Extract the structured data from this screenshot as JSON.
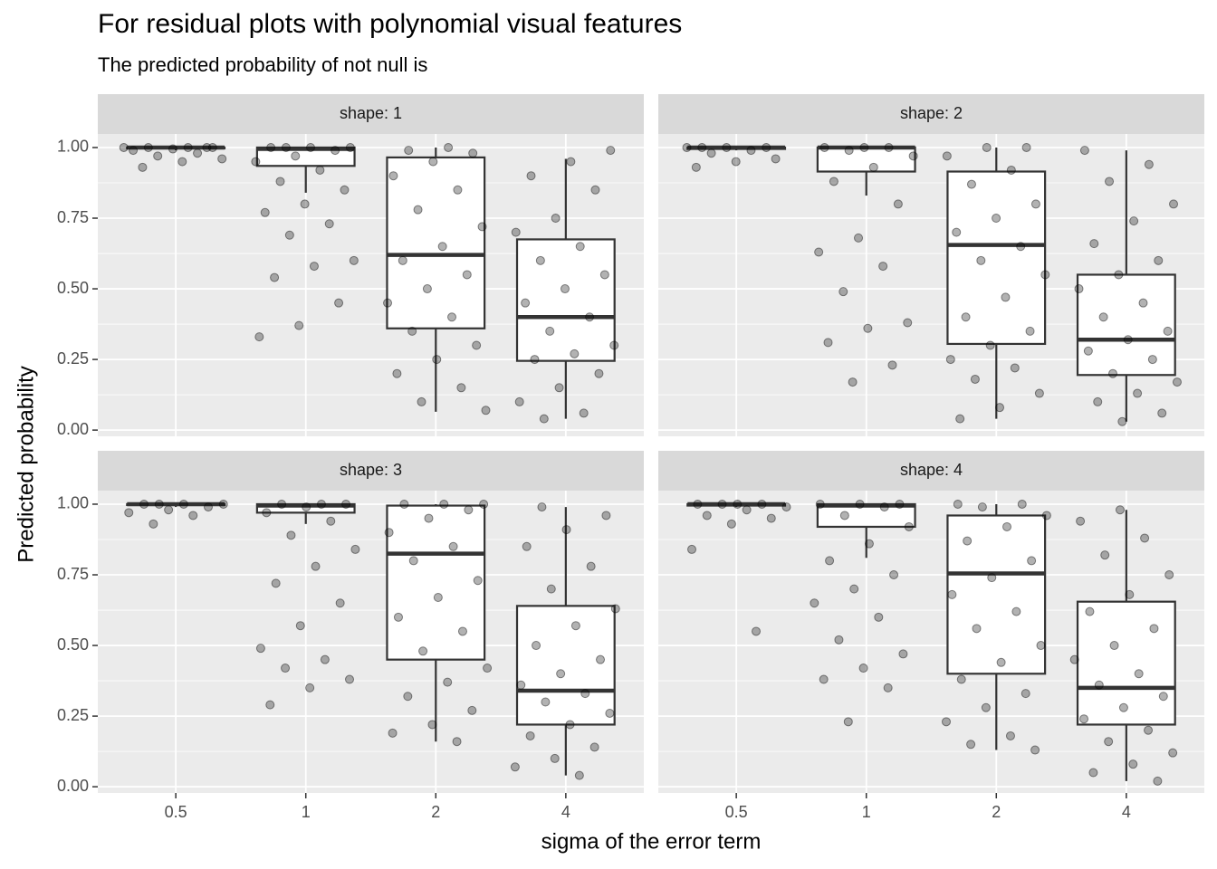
{
  "title": "For residual plots with polynomial visual features",
  "subtitle": "The predicted probability of not null is",
  "x_label": "sigma of the error term",
  "y_label": "Predicted probability",
  "chart_data": {
    "type": "box",
    "categories": [
      "0.5",
      "1",
      "2",
      "4"
    ],
    "ylim": [
      -0.022,
      1.048
    ],
    "yticks": [
      {
        "value": 0,
        "label": "0.00"
      },
      {
        "value": 0.25,
        "label": "0.25"
      },
      {
        "value": 0.5,
        "label": "0.50"
      },
      {
        "value": 0.75,
        "label": "0.75"
      },
      {
        "value": 1,
        "label": "1.00"
      }
    ],
    "grid": true,
    "box_color": "#333333",
    "point_color": "#000000",
    "facets": [
      {
        "label": "shape: 1",
        "boxes": [
          {
            "min": 0.99,
            "q1": 0.997,
            "median": 1,
            "q3": 1,
            "max": 1,
            "points": [
              1,
              1,
              1,
              1,
              0.995,
              0.99,
              0.98,
              0.97,
              0.96,
              0.95,
              0.93,
              1
            ]
          },
          {
            "min": 0.84,
            "q1": 0.935,
            "median": 0.995,
            "q3": 1,
            "max": 1,
            "points": [
              1,
              1,
              1,
              1,
              0.99,
              0.97,
              0.95,
              0.92,
              0.88,
              0.85,
              0.8,
              0.77,
              0.73,
              0.69,
              0.6,
              0.58,
              0.54,
              0.45,
              0.37,
              0.33
            ]
          },
          {
            "min": 0.065,
            "q1": 0.36,
            "median": 0.62,
            "q3": 0.965,
            "max": 1,
            "points": [
              1,
              0.99,
              0.98,
              0.95,
              0.9,
              0.85,
              0.78,
              0.72,
              0.65,
              0.6,
              0.55,
              0.5,
              0.45,
              0.4,
              0.35,
              0.3,
              0.25,
              0.2,
              0.15,
              0.1,
              0.07
            ]
          },
          {
            "min": 0.04,
            "q1": 0.245,
            "median": 0.4,
            "q3": 0.675,
            "max": 0.96,
            "points": [
              0.99,
              0.95,
              0.9,
              0.85,
              0.75,
              0.7,
              0.65,
              0.6,
              0.55,
              0.5,
              0.45,
              0.4,
              0.35,
              0.3,
              0.27,
              0.25,
              0.2,
              0.15,
              0.1,
              0.06,
              0.04
            ]
          }
        ]
      },
      {
        "label": "shape: 2",
        "boxes": [
          {
            "min": 0.99,
            "q1": 0.995,
            "median": 1,
            "q3": 1,
            "max": 1,
            "points": [
              1,
              1,
              1,
              1,
              0.99,
              0.98,
              0.96,
              0.95,
              0.93
            ]
          },
          {
            "min": 0.83,
            "q1": 0.915,
            "median": 1,
            "q3": 1,
            "max": 1,
            "points": [
              1,
              1,
              1,
              0.99,
              0.97,
              0.93,
              0.88,
              0.8,
              0.68,
              0.63,
              0.58,
              0.49,
              0.38,
              0.36,
              0.31,
              0.23,
              0.17
            ]
          },
          {
            "min": 0.04,
            "q1": 0.305,
            "median": 0.655,
            "q3": 0.915,
            "max": 1,
            "points": [
              1,
              1,
              0.97,
              0.92,
              0.87,
              0.8,
              0.75,
              0.7,
              0.65,
              0.6,
              0.55,
              0.47,
              0.4,
              0.35,
              0.3,
              0.25,
              0.22,
              0.18,
              0.13,
              0.08,
              0.04
            ]
          },
          {
            "min": 0.03,
            "q1": 0.195,
            "median": 0.32,
            "q3": 0.55,
            "max": 0.99,
            "points": [
              0.99,
              0.94,
              0.88,
              0.8,
              0.74,
              0.66,
              0.6,
              0.55,
              0.5,
              0.45,
              0.4,
              0.35,
              0.32,
              0.28,
              0.25,
              0.2,
              0.17,
              0.13,
              0.1,
              0.06,
              0.03
            ]
          }
        ]
      },
      {
        "label": "shape: 3",
        "boxes": [
          {
            "min": 0.99,
            "q1": 0.997,
            "median": 1,
            "q3": 1,
            "max": 1,
            "points": [
              1,
              1,
              1,
              1,
              0.99,
              0.98,
              0.97,
              0.96,
              0.93
            ]
          },
          {
            "min": 0.93,
            "q1": 0.97,
            "median": 0.995,
            "q3": 1,
            "max": 1,
            "points": [
              1,
              1,
              1,
              0.99,
              0.97,
              0.94,
              0.89,
              0.84,
              0.78,
              0.72,
              0.65,
              0.57,
              0.49,
              0.45,
              0.42,
              0.38,
              0.35,
              0.29
            ]
          },
          {
            "min": 0.16,
            "q1": 0.45,
            "median": 0.825,
            "q3": 0.995,
            "max": 1,
            "points": [
              1,
              1,
              1,
              0.98,
              0.95,
              0.9,
              0.85,
              0.8,
              0.73,
              0.67,
              0.6,
              0.55,
              0.48,
              0.42,
              0.37,
              0.32,
              0.27,
              0.22,
              0.19,
              0.16
            ]
          },
          {
            "min": 0.04,
            "q1": 0.22,
            "median": 0.34,
            "q3": 0.64,
            "max": 0.99,
            "points": [
              0.99,
              0.96,
              0.91,
              0.85,
              0.78,
              0.7,
              0.63,
              0.57,
              0.5,
              0.45,
              0.4,
              0.36,
              0.33,
              0.3,
              0.26,
              0.22,
              0.18,
              0.14,
              0.1,
              0.07,
              0.04
            ]
          }
        ]
      },
      {
        "label": "shape: 4",
        "boxes": [
          {
            "min": 0.99,
            "q1": 0.995,
            "median": 1,
            "q3": 1,
            "max": 1,
            "points": [
              1,
              1,
              1,
              1,
              0.99,
              0.98,
              0.96,
              0.95,
              0.93,
              0.84,
              0.55
            ]
          },
          {
            "min": 0.81,
            "q1": 0.92,
            "median": 0.995,
            "q3": 1,
            "max": 1,
            "points": [
              1,
              1,
              1,
              0.99,
              0.96,
              0.92,
              0.86,
              0.8,
              0.75,
              0.7,
              0.65,
              0.6,
              0.52,
              0.47,
              0.42,
              0.38,
              0.35,
              0.23
            ]
          },
          {
            "min": 0.13,
            "q1": 0.4,
            "median": 0.755,
            "q3": 0.96,
            "max": 1,
            "points": [
              1,
              1,
              0.99,
              0.96,
              0.92,
              0.87,
              0.8,
              0.74,
              0.68,
              0.62,
              0.56,
              0.5,
              0.44,
              0.38,
              0.33,
              0.28,
              0.23,
              0.18,
              0.15,
              0.13
            ]
          },
          {
            "min": 0.02,
            "q1": 0.22,
            "median": 0.35,
            "q3": 0.655,
            "max": 0.98,
            "points": [
              0.98,
              0.94,
              0.88,
              0.82,
              0.75,
              0.68,
              0.62,
              0.56,
              0.5,
              0.45,
              0.4,
              0.36,
              0.32,
              0.28,
              0.24,
              0.2,
              0.16,
              0.12,
              0.08,
              0.05,
              0.02
            ]
          }
        ]
      }
    ]
  }
}
